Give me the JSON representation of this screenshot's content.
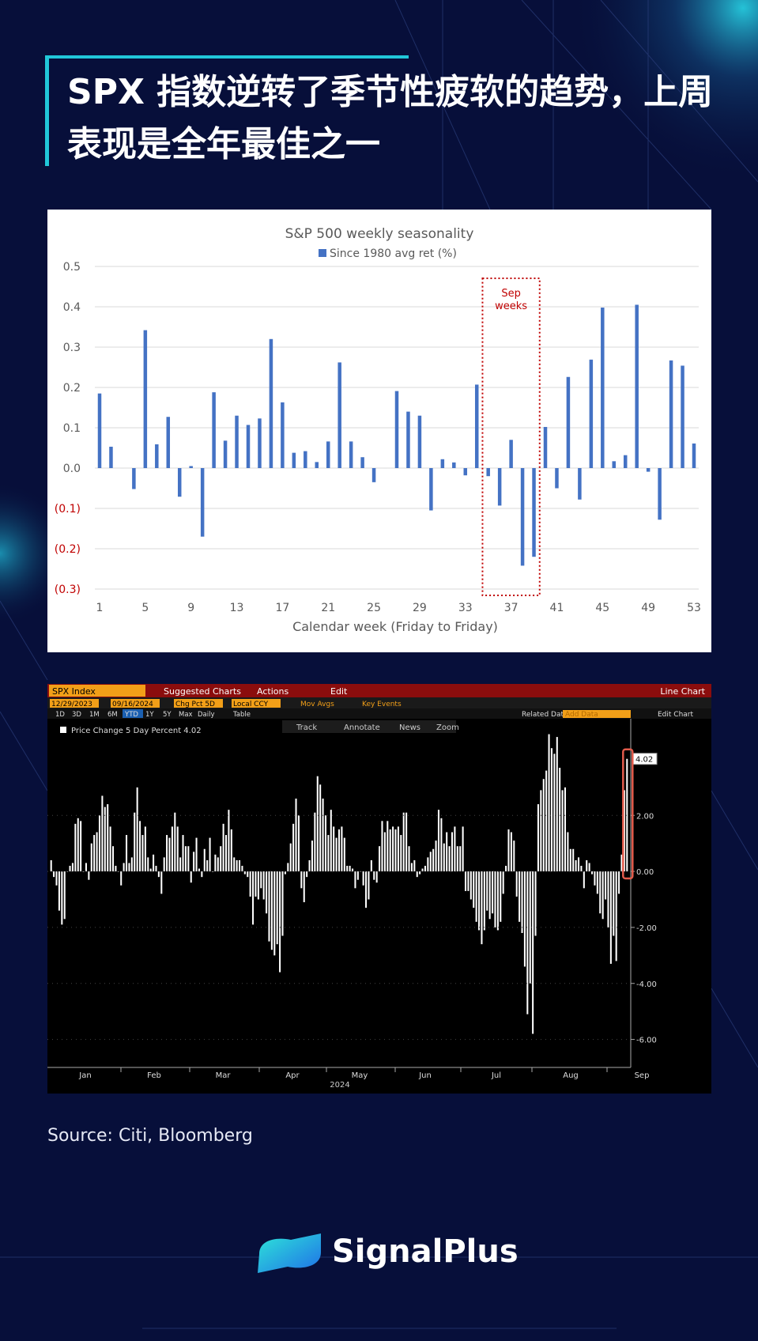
{
  "title": "SPX 指数逆转了季节性疲软的趋势，上周表现是全年最佳之一",
  "source": "Source: Citi, Bloomberg",
  "brand": {
    "name": "SignalPlus"
  },
  "colors": {
    "background": "#070f3a",
    "accent": "#21c7d9",
    "bar_blue": "#4472c4",
    "highlight_red": "#c00000"
  },
  "chart_data": [
    {
      "type": "bar",
      "title": "S&P 500 weekly seasonality",
      "legend": "Since 1980 avg ret (%)",
      "legend_position": "top",
      "xlabel": "Calendar week (Friday to Friday)",
      "ylabel": "",
      "ylim": [
        -0.3,
        0.5
      ],
      "y_ticks": [
        "0.5",
        "0.4",
        "0.3",
        "0.2",
        "0.1",
        "0.0",
        "(0.1)",
        "(0.2)",
        "(0.3)"
      ],
      "x_ticks": [
        "1",
        "5",
        "9",
        "13",
        "17",
        "21",
        "25",
        "29",
        "33",
        "37",
        "41",
        "45",
        "49",
        "53"
      ],
      "grid": true,
      "annotation": {
        "text_line1": "Sep",
        "text_line2": "weeks",
        "weeks": [
          35,
          39
        ]
      },
      "series": [
        {
          "name": "Since 1980 avg ret (%)",
          "x": [
            1,
            2,
            3,
            4,
            5,
            6,
            7,
            8,
            9,
            10,
            11,
            12,
            13,
            14,
            15,
            16,
            17,
            18,
            19,
            20,
            21,
            22,
            23,
            24,
            25,
            26,
            27,
            28,
            29,
            30,
            31,
            32,
            33,
            34,
            35,
            36,
            37,
            38,
            39,
            40,
            41,
            42,
            43,
            44,
            45,
            46,
            47,
            48,
            49,
            50,
            51,
            52,
            53
          ],
          "values": [
            0.185,
            0.053,
            0.0,
            -0.052,
            0.342,
            0.059,
            0.127,
            -0.071,
            0.005,
            -0.17,
            0.188,
            0.068,
            0.13,
            0.107,
            0.123,
            0.32,
            0.163,
            0.038,
            0.042,
            0.015,
            0.066,
            0.262,
            0.066,
            0.027,
            -0.035,
            0.0,
            0.191,
            0.14,
            0.13,
            -0.105,
            0.022,
            0.014,
            -0.018,
            0.207,
            -0.02,
            -0.093,
            0.07,
            -0.242,
            -0.22,
            0.102,
            -0.05,
            0.226,
            -0.078,
            0.269,
            0.398,
            0.017,
            0.032,
            0.405,
            -0.009,
            -0.128,
            0.267,
            0.254,
            0.061
          ]
        }
      ]
    },
    {
      "type": "bar",
      "title": "Price Change 5 Day Percent 4.02",
      "ticker": "SPX Index",
      "xlabel": "2024",
      "ylim": [
        -7,
        5
      ],
      "y_ticks": [
        "4.02",
        "2.00",
        "0.00",
        "-2.00",
        "-4.00",
        "-6.00"
      ],
      "x_ticks": [
        "Jan",
        "Feb",
        "Mar",
        "Apr",
        "May",
        "Jun",
        "Jul",
        "Aug",
        "Sep"
      ],
      "grid": false,
      "last_value": "4.02",
      "toolbar": {
        "menu": [
          "SPX Index",
          "Suggested Charts",
          "Actions",
          "Edit",
          "Line Chart"
        ],
        "row2": [
          "12/29/2023",
          "09/16/2024",
          "Chg Pct 5D",
          "Local CCY",
          "Mov Avgs",
          "Key Events"
        ],
        "periods": [
          "1D",
          "3D",
          "1M",
          "6M",
          "YTD",
          "1Y",
          "5Y",
          "Max",
          "Daily",
          "Table"
        ],
        "right": [
          "Related Data",
          "Add Data",
          "Edit Chart"
        ],
        "tools": [
          "Track",
          "Annotate",
          "News",
          "Zoom"
        ]
      },
      "series": [
        {
          "name": "Price Change 5 Day Percent",
          "values": [
            0.4,
            -0.2,
            -0.5,
            -1.4,
            -1.9,
            -1.7,
            0.0,
            0.2,
            0.3,
            1.7,
            1.9,
            1.8,
            0.0,
            0.3,
            -0.3,
            1.0,
            1.3,
            1.4,
            2.0,
            2.7,
            2.3,
            2.4,
            1.6,
            0.9,
            0.2,
            0.0,
            -0.5,
            0.3,
            1.3,
            0.3,
            0.5,
            2.1,
            3.0,
            1.8,
            1.3,
            1.6,
            0.5,
            0.1,
            0.6,
            0.2,
            -0.2,
            -0.8,
            0.5,
            1.3,
            1.2,
            1.6,
            2.1,
            1.6,
            0.5,
            1.3,
            0.9,
            0.9,
            -0.4,
            0.7,
            1.2,
            0.1,
            -0.2,
            0.8,
            0.4,
            1.2,
            0.0,
            0.6,
            0.5,
            0.9,
            1.7,
            1.3,
            2.2,
            1.5,
            0.5,
            0.4,
            0.4,
            0.2,
            -0.1,
            -0.2,
            -0.9,
            -1.9,
            -0.9,
            -1.0,
            -0.6,
            -1.0,
            -1.5,
            -2.5,
            -2.8,
            -3.0,
            -2.6,
            -3.6,
            -2.3,
            -0.1,
            0.3,
            1.0,
            1.7,
            2.6,
            2.0,
            -0.6,
            -1.1,
            -0.2,
            0.4,
            1.1,
            2.1,
            3.4,
            3.1,
            2.6,
            2.0,
            1.3,
            2.2,
            1.6,
            1.2,
            1.5,
            1.6,
            1.2,
            0.2,
            0.2,
            0.1,
            -0.6,
            -0.3,
            0.0,
            -0.5,
            -1.3,
            -1.0,
            0.4,
            -0.3,
            -0.4,
            0.9,
            1.8,
            1.4,
            1.8,
            1.5,
            1.6,
            1.5,
            1.6,
            1.3,
            2.1,
            2.1,
            0.9,
            0.3,
            0.4,
            -0.2,
            -0.1,
            0.1,
            0.2,
            0.5,
            0.7,
            0.8,
            1.1,
            2.2,
            1.9,
            1.0,
            1.4,
            0.9,
            1.4,
            1.6,
            0.9,
            0.9,
            1.6,
            -0.7,
            -0.7,
            -1.0,
            -1.3,
            -1.8,
            -2.1,
            -2.6,
            -2.1,
            -1.4,
            -1.7,
            -1.5,
            -2.0,
            -2.1,
            -1.8,
            -0.8,
            0.2,
            1.5,
            1.4,
            1.1,
            -0.9,
            -1.8,
            -2.2,
            -3.4,
            -5.1,
            -4.0,
            -5.8,
            -2.3,
            2.4,
            2.9,
            3.3,
            3.6,
            4.9,
            4.4,
            4.2,
            4.8,
            3.7,
            2.9,
            3.0,
            1.4,
            0.8,
            0.8,
            0.4,
            0.5,
            0.2,
            -0.6,
            0.4,
            0.3,
            -0.1,
            -0.5,
            -0.8,
            -1.5,
            -1.7,
            -1.0,
            -2.0,
            -3.3,
            -2.3,
            -3.2,
            -0.8,
            0.6,
            2.9,
            4.02
          ]
        }
      ]
    }
  ]
}
